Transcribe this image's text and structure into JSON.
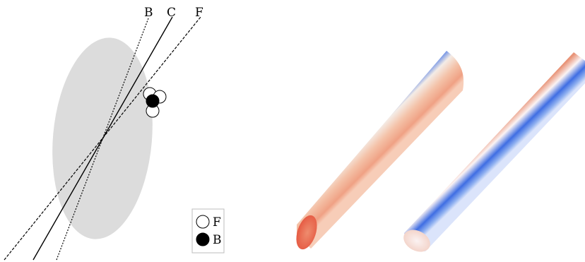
{
  "left_panel": {
    "line_labels": {
      "b": "B",
      "c": "C",
      "f": "F"
    },
    "legend": {
      "items": [
        {
          "label": "F",
          "marker": "open-circle"
        },
        {
          "label": "B",
          "marker": "filled-circle"
        }
      ]
    },
    "colors": {
      "ellipse": "#dcdcdc",
      "line": "#000000"
    }
  },
  "right_panel": {
    "tube_colors": {
      "red": "#e8574b",
      "peach": "#f6c4ad",
      "white": "#fbf4f4",
      "blue": "#4a78e6"
    }
  }
}
